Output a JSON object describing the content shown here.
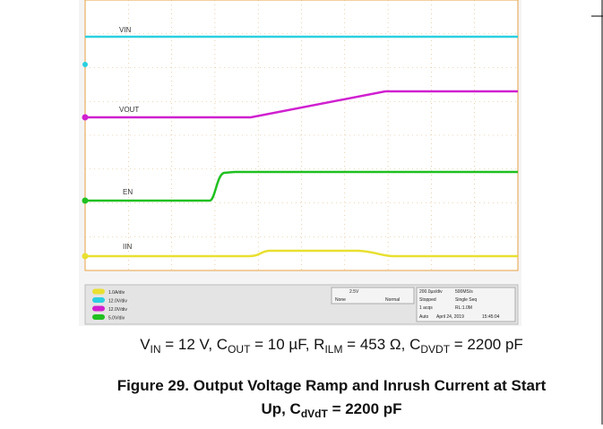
{
  "scope": {
    "traces": [
      {
        "label": "VIN"
      },
      {
        "label": "VOUT"
      },
      {
        "label": "EN"
      },
      {
        "label": "IIN"
      }
    ],
    "status": {
      "channels": [
        "1.0A/div",
        "12.0V/div",
        "12.0V/div",
        "5.0V/div"
      ],
      "trigger": [
        "2.5V",
        "None",
        "Normal"
      ],
      "acquisition": [
        "200.0µs/div",
        "500MS/s",
        "Stopped",
        "Single Seq",
        "1 acqs",
        "RL:1.0M",
        "Auto",
        "April 24, 2019",
        "15:45:04"
      ]
    }
  },
  "caption": {
    "conditions": [
      "V",
      "IN",
      " = 12 V, C",
      "OUT",
      " = 10 µF, R",
      "ILM",
      " = 453 Ω, C",
      "DVDT",
      " = 2200 pF"
    ]
  },
  "figure": {
    "title_line1": "Figure 29. Output Voltage Ramp and Inrush Current at Start",
    "title_line2": [
      "Up, C",
      "dVdT",
      " = 2200 pF"
    ]
  }
}
